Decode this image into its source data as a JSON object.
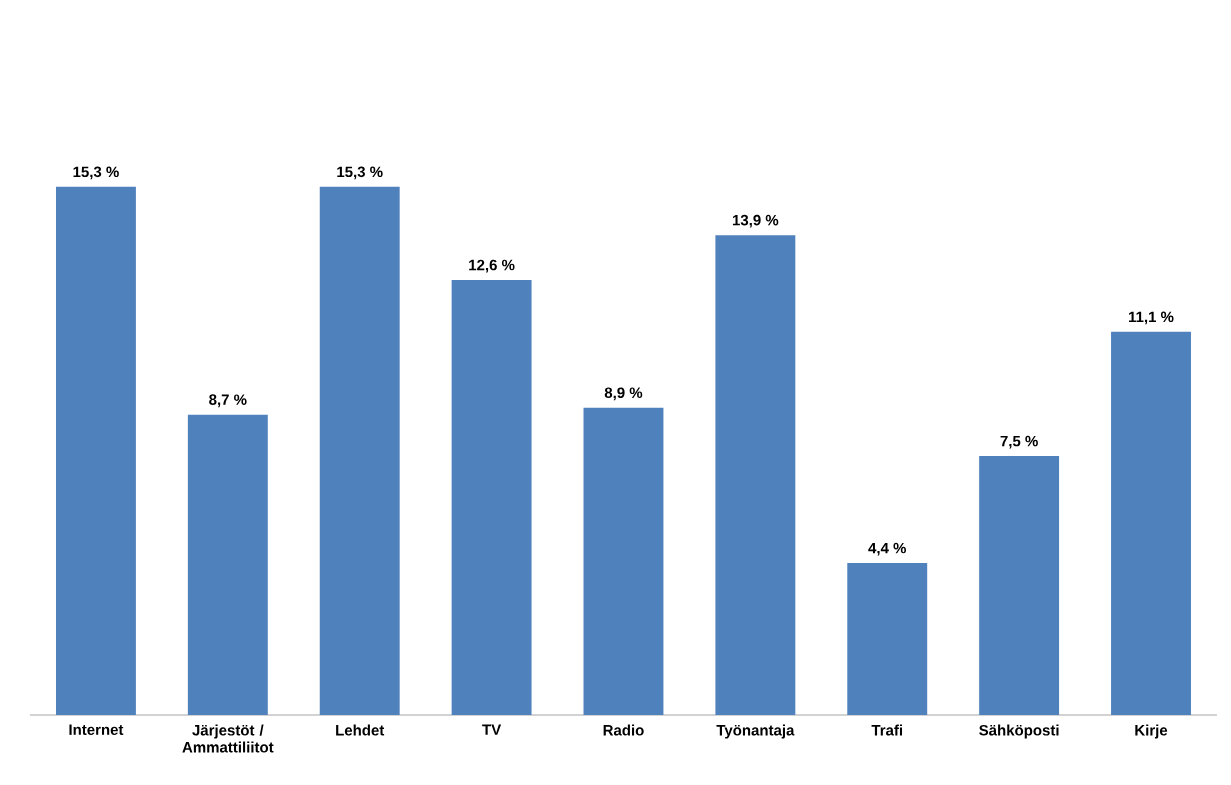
{
  "chart_data": {
    "type": "bar",
    "categories": [
      "Internet",
      "Järjestöt / Ammattiliitot",
      "Lehdet",
      "TV",
      "Radio",
      "Työnantaja",
      "Trafi",
      "Sähköposti",
      "Kirje"
    ],
    "values": [
      15.3,
      8.7,
      15.3,
      12.6,
      8.9,
      13.9,
      4.4,
      7.5,
      11.1
    ],
    "value_labels": [
      "15,3 %",
      "8,7 %",
      "15,3 %",
      "12,6 %",
      "8,9 %",
      "13,9 %",
      "4,4 %",
      "7,5 %",
      "11,1 %"
    ],
    "color": "#4f81bd",
    "tick_labels": "x"
  }
}
